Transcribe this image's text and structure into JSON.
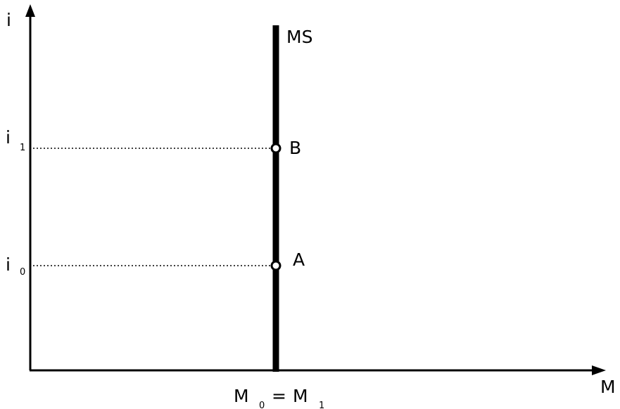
{
  "axes": {
    "y_label": "i",
    "x_label": "M"
  },
  "curve": {
    "label": "MS"
  },
  "levels": [
    {
      "name": "i",
      "sub": "1",
      "point": "B"
    },
    {
      "name": "i",
      "sub": "0",
      "point": "A"
    }
  ],
  "x_tick": {
    "left": "M",
    "left_sub": "0",
    "eq": "=",
    "right": "M",
    "right_sub": "1"
  }
}
